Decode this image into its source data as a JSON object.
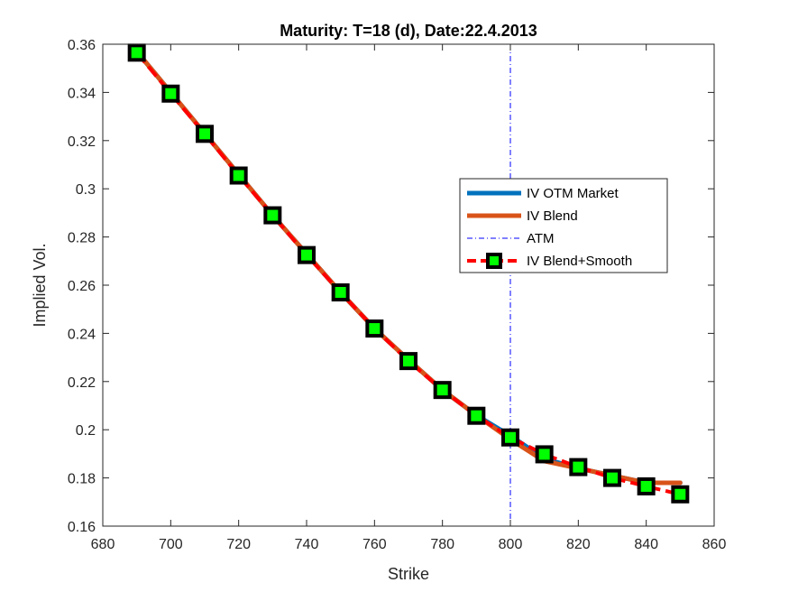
{
  "chart_data": {
    "type": "line",
    "title": "Maturity: T=18 (d), Date:22.4.2013",
    "xlabel": "Strike",
    "ylabel": "Implied Vol.",
    "xlim": [
      680,
      860
    ],
    "ylim": [
      0.16,
      0.36
    ],
    "xticks": [
      680,
      700,
      720,
      740,
      760,
      780,
      800,
      820,
      840,
      860
    ],
    "xtick_labels": [
      "680",
      "700",
      "720",
      "740",
      "760",
      "780",
      "800",
      "820",
      "840",
      "860"
    ],
    "yticks": [
      0.16,
      0.18,
      0.2,
      0.22,
      0.24,
      0.26,
      0.28,
      0.3,
      0.32,
      0.34,
      0.36
    ],
    "ytick_labels": [
      "0.16",
      "0.18",
      "0.2",
      "0.22",
      "0.24",
      "0.26",
      "0.28",
      "0.3",
      "0.32",
      "0.34",
      "0.36"
    ],
    "grid": false,
    "legend_position": "right-middle",
    "atm_strike": 800,
    "series": [
      {
        "name": "IV OTM Market",
        "color": "#0072BD",
        "style": "solid",
        "x": [
          690,
          700,
          710,
          720,
          730,
          740,
          750,
          760,
          770,
          780,
          790,
          800,
          810,
          820,
          830,
          840,
          850
        ],
        "values": [
          0.357,
          0.34,
          0.323,
          0.306,
          0.289,
          0.273,
          0.257,
          0.242,
          0.229,
          0.2165,
          0.206,
          0.1975,
          0.188,
          0.184,
          0.181,
          0.178,
          0.178
        ]
      },
      {
        "name": "IV Blend",
        "color": "#D95319",
        "style": "solid",
        "x": [
          690,
          700,
          710,
          720,
          730,
          740,
          750,
          760,
          770,
          780,
          790,
          800,
          810,
          820,
          830,
          840,
          850
        ],
        "values": [
          0.357,
          0.34,
          0.323,
          0.306,
          0.289,
          0.273,
          0.257,
          0.242,
          0.229,
          0.2165,
          0.206,
          0.196,
          0.187,
          0.184,
          0.181,
          0.178,
          0.178
        ]
      },
      {
        "name": "ATM",
        "color": "#0000FF",
        "style": "dash-dot"
      },
      {
        "name": "IV Blend+Smooth",
        "color": "#FF0000",
        "style": "dashed",
        "marker": "square",
        "marker_edge": "#000000",
        "marker_face": "#00FF00",
        "x": [
          690,
          700,
          710,
          720,
          730,
          740,
          750,
          760,
          770,
          780,
          790,
          800,
          810,
          820,
          830,
          840,
          850
        ],
        "values": [
          0.3565,
          0.3395,
          0.3228,
          0.3055,
          0.289,
          0.2725,
          0.257,
          0.242,
          0.2285,
          0.2165,
          0.2058,
          0.1968,
          0.1898,
          0.1845,
          0.18,
          0.1765,
          0.1732
        ]
      }
    ]
  }
}
